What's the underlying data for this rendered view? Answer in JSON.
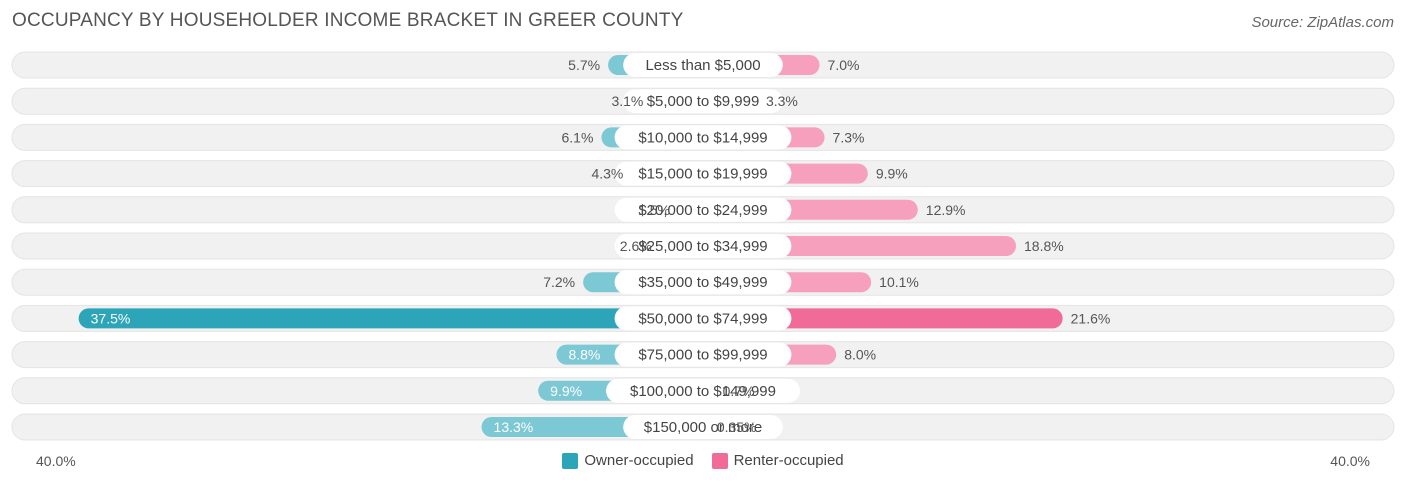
{
  "header": {
    "title": "OCCUPANCY BY HOUSEHOLDER INCOME BRACKET IN GREER COUNTY",
    "source": "Source: ZipAtlas.com"
  },
  "colors": {
    "owner": "#7cc8d4",
    "owner_strong": "#2ca5b8",
    "renter": "#f6a0bd",
    "renter_strong": "#f06b98",
    "track": "#f1f1f1"
  },
  "chart_data": {
    "type": "bar",
    "orientation": "horizontal-diverging",
    "title": "OCCUPANCY BY HOUSEHOLDER INCOME BRACKET IN GREER COUNTY",
    "categories": [
      "Less than $5,000",
      "$5,000 to $9,999",
      "$10,000 to $14,999",
      "$15,000 to $19,999",
      "$20,000 to $24,999",
      "$25,000 to $34,999",
      "$35,000 to $49,999",
      "$50,000 to $74,999",
      "$75,000 to $99,999",
      "$100,000 to $149,999",
      "$150,000 or more"
    ],
    "series": [
      {
        "name": "Owner-occupied",
        "values": [
          5.7,
          3.1,
          6.1,
          4.3,
          1.5,
          2.6,
          7.2,
          37.5,
          8.8,
          9.9,
          13.3
        ],
        "labels": [
          "5.7%",
          "3.1%",
          "6.1%",
          "4.3%",
          "1.5%",
          "2.6%",
          "7.2%",
          "37.5%",
          "8.8%",
          "9.9%",
          "13.3%"
        ]
      },
      {
        "name": "Renter-occupied",
        "values": [
          7.0,
          3.3,
          7.3,
          9.9,
          12.9,
          18.8,
          10.1,
          21.6,
          8.0,
          0.7,
          0.35
        ],
        "labels": [
          "7.0%",
          "3.3%",
          "7.3%",
          "9.9%",
          "12.9%",
          "18.8%",
          "10.1%",
          "21.6%",
          "8.0%",
          "0.7%",
          "0.35%"
        ]
      }
    ],
    "xlim": [
      -40,
      40
    ],
    "axis_left_label": "40.0%",
    "axis_right_label": "40.0%",
    "legend_position": "bottom-center"
  },
  "legend": {
    "owner_label": "Owner-occupied",
    "renter_label": "Renter-occupied"
  }
}
